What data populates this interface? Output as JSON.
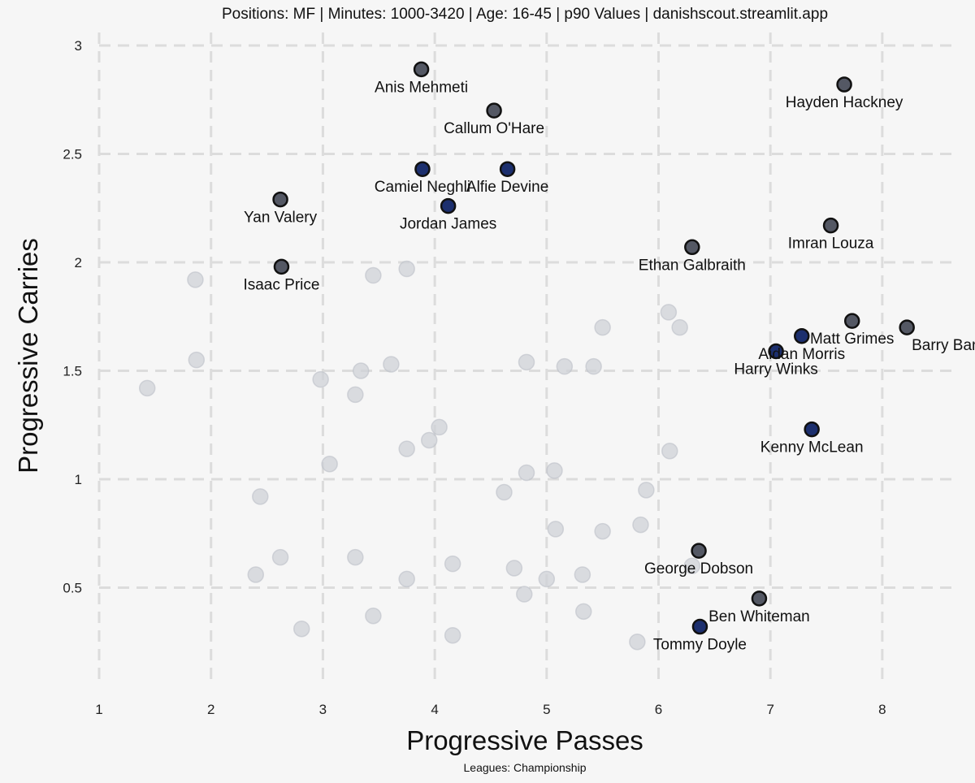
{
  "chart_data": {
    "type": "scatter",
    "title": "Positions: MF  | Minutes: 1000-3420 | Age: 16-45  | p90 Values | danishscout.streamlit.app",
    "caption": "Leagues: Championship",
    "xlabel": "Progressive Passes",
    "ylabel": "Progressive Carries",
    "xlim": [
      1,
      8.2
    ],
    "ylim": [
      0.1,
      3.0
    ],
    "xticks": [
      "1",
      "2",
      "3",
      "4",
      "5",
      "6",
      "7",
      "8"
    ],
    "yticks": [
      "0.5",
      "1",
      "1.5",
      "2",
      "2.5",
      "3"
    ],
    "grid": true,
    "colors": {
      "background": "#f6f6f6",
      "background_point": "#cdd0d6",
      "highlight_grey": "#545864",
      "highlight_navy": "#1c2f6e"
    },
    "background_points": [
      {
        "x": 1.43,
        "y": 1.42
      },
      {
        "x": 1.86,
        "y": 1.92
      },
      {
        "x": 1.87,
        "y": 1.55
      },
      {
        "x": 2.44,
        "y": 0.92
      },
      {
        "x": 2.4,
        "y": 0.56
      },
      {
        "x": 2.62,
        "y": 0.64
      },
      {
        "x": 2.81,
        "y": 0.31
      },
      {
        "x": 2.98,
        "y": 1.46
      },
      {
        "x": 3.06,
        "y": 1.07
      },
      {
        "x": 3.29,
        "y": 1.39
      },
      {
        "x": 3.29,
        "y": 0.64
      },
      {
        "x": 3.34,
        "y": 1.5
      },
      {
        "x": 3.45,
        "y": 1.94
      },
      {
        "x": 3.45,
        "y": 0.37
      },
      {
        "x": 3.61,
        "y": 1.53
      },
      {
        "x": 3.75,
        "y": 1.97
      },
      {
        "x": 3.75,
        "y": 1.14
      },
      {
        "x": 3.75,
        "y": 0.54
      },
      {
        "x": 3.95,
        "y": 1.18
      },
      {
        "x": 4.04,
        "y": 1.24
      },
      {
        "x": 4.16,
        "y": 0.61
      },
      {
        "x": 4.16,
        "y": 0.28
      },
      {
        "x": 4.62,
        "y": 0.94
      },
      {
        "x": 4.71,
        "y": 0.59
      },
      {
        "x": 4.8,
        "y": 0.47
      },
      {
        "x": 4.82,
        "y": 1.54
      },
      {
        "x": 4.82,
        "y": 1.03
      },
      {
        "x": 5.0,
        "y": 0.54
      },
      {
        "x": 5.07,
        "y": 1.04
      },
      {
        "x": 5.08,
        "y": 0.77
      },
      {
        "x": 5.16,
        "y": 1.52
      },
      {
        "x": 5.32,
        "y": 0.56
      },
      {
        "x": 5.33,
        "y": 0.39
      },
      {
        "x": 5.42,
        "y": 1.52
      },
      {
        "x": 5.5,
        "y": 1.7
      },
      {
        "x": 5.5,
        "y": 0.76
      },
      {
        "x": 5.81,
        "y": 0.25
      },
      {
        "x": 5.84,
        "y": 0.79
      },
      {
        "x": 5.89,
        "y": 0.95
      },
      {
        "x": 6.09,
        "y": 1.77
      },
      {
        "x": 6.1,
        "y": 1.13
      },
      {
        "x": 6.19,
        "y": 1.7
      },
      {
        "x": 6.3,
        "y": 0.6
      }
    ],
    "highlighted_points": [
      {
        "name": "Anis Mehmeti",
        "x": 3.88,
        "y": 2.89,
        "color": "highlight_grey",
        "label_pos": "below"
      },
      {
        "name": "Callum O'Hare",
        "x": 4.53,
        "y": 2.7,
        "color": "highlight_grey",
        "label_pos": "below"
      },
      {
        "name": "Hayden Hackney",
        "x": 7.66,
        "y": 2.82,
        "color": "highlight_grey",
        "label_pos": "below"
      },
      {
        "name": "Camiel Neghli",
        "x": 3.89,
        "y": 2.43,
        "color": "highlight_navy",
        "label_pos": "below"
      },
      {
        "name": "Alfie Devine",
        "x": 4.65,
        "y": 2.43,
        "color": "highlight_navy",
        "label_pos": "below"
      },
      {
        "name": "Jordan James",
        "x": 4.12,
        "y": 2.26,
        "color": "highlight_navy",
        "label_pos": "below"
      },
      {
        "name": "Yan Valery",
        "x": 2.62,
        "y": 2.29,
        "color": "highlight_grey",
        "label_pos": "below"
      },
      {
        "name": "Imran Louza",
        "x": 7.54,
        "y": 2.17,
        "color": "highlight_grey",
        "label_pos": "below"
      },
      {
        "name": "Ethan Galbraith",
        "x": 6.3,
        "y": 2.07,
        "color": "highlight_grey",
        "label_pos": "below"
      },
      {
        "name": "Isaac Price",
        "x": 2.63,
        "y": 1.98,
        "color": "highlight_grey",
        "label_pos": "below"
      },
      {
        "name": "Matt Grimes",
        "x": 7.73,
        "y": 1.73,
        "color": "highlight_grey",
        "label_pos": "below"
      },
      {
        "name": "Barry Bannan",
        "x": 8.22,
        "y": 1.7,
        "color": "highlight_grey",
        "label_pos": "below-left"
      },
      {
        "name": "Aidan Morris",
        "x": 7.28,
        "y": 1.66,
        "color": "highlight_navy",
        "label_pos": "below"
      },
      {
        "name": "Harry Winks",
        "x": 7.05,
        "y": 1.59,
        "color": "highlight_navy",
        "label_pos": "below"
      },
      {
        "name": "Kenny McLean",
        "x": 7.37,
        "y": 1.23,
        "color": "highlight_navy",
        "label_pos": "below"
      },
      {
        "name": "George Dobson",
        "x": 6.36,
        "y": 0.67,
        "color": "highlight_grey",
        "label_pos": "below"
      },
      {
        "name": "Ben Whiteman",
        "x": 6.9,
        "y": 0.45,
        "color": "highlight_grey",
        "label_pos": "below"
      },
      {
        "name": "Tommy Doyle",
        "x": 6.37,
        "y": 0.32,
        "color": "highlight_navy",
        "label_pos": "below"
      }
    ]
  }
}
